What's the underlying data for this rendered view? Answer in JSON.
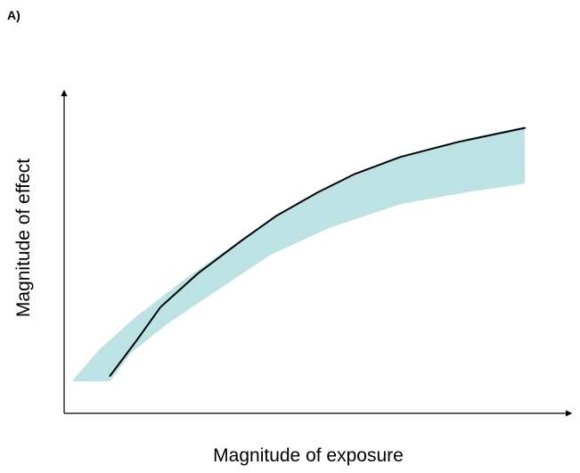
{
  "panel_label": "A)",
  "chart_data": {
    "type": "line",
    "title": "",
    "xlabel": "Magnitude of exposure",
    "ylabel": "Magnitude of effect",
    "xlim": [
      0,
      100
    ],
    "ylim": [
      0,
      100
    ],
    "grid": false,
    "legend": "none",
    "show_tick_labels": false,
    "series": [
      {
        "values": [
          [
            13.0,
            7.5
          ],
          [
            18.6,
            20.0
          ],
          [
            23.6,
            31.7
          ],
          [
            31.4,
            43.4
          ],
          [
            40.7,
            55.1
          ],
          [
            47.9,
            63.7
          ],
          [
            56.6,
            71.9
          ],
          [
            64.3,
            78.3
          ],
          [
            73.9,
            84.3
          ],
          [
            86.1,
            89.6
          ],
          [
            100.0,
            94.5
          ]
        ]
      }
    ],
    "band": {
      "upper": [
        [
          5.0,
          5.6
        ],
        [
          10.7,
          16.7
        ],
        [
          18.6,
          28.5
        ],
        [
          29.1,
          42.0
        ],
        [
          40.3,
          55.1
        ],
        [
          51.5,
          67.2
        ],
        [
          58.9,
          73.8
        ],
        [
          69.3,
          81.5
        ],
        [
          79.6,
          87.2
        ],
        [
          89.8,
          91.5
        ],
        [
          100.0,
          94.9
        ]
      ],
      "lower": [
        [
          5.0,
          5.6
        ],
        [
          13.0,
          5.6
        ],
        [
          17.5,
          15.7
        ],
        [
          24.8,
          25.5
        ],
        [
          35.2,
          37.2
        ],
        [
          46.8,
          50.1
        ],
        [
          59.1,
          59.5
        ],
        [
          74.0,
          67.8
        ],
        [
          88.8,
          72.2
        ],
        [
          100.0,
          74.9
        ]
      ],
      "color": "#bce2e4"
    },
    "line_color": "#000000"
  }
}
